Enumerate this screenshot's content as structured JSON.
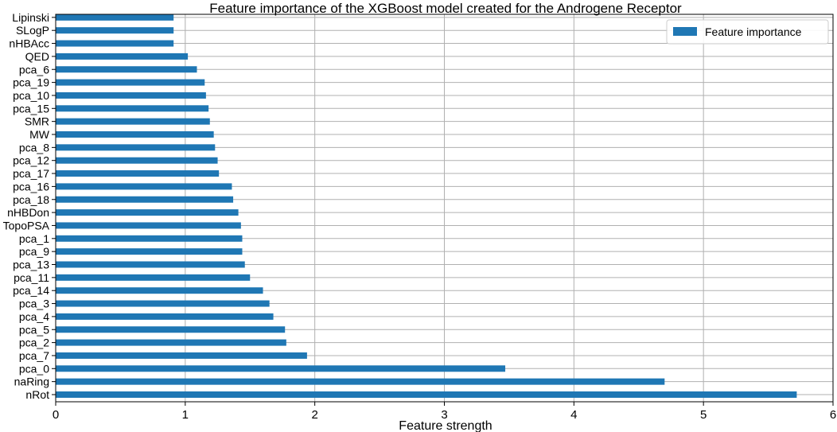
{
  "chart_data": {
    "type": "bar",
    "orientation": "horizontal",
    "title": "Feature importance of the XGBoost model created for the Androgene Receptor",
    "xlabel": "Feature strength",
    "ylabel": "",
    "xlim": [
      0,
      6
    ],
    "xticks": [
      "0",
      "1",
      "2",
      "3",
      "4",
      "5",
      "6"
    ],
    "grid": true,
    "legend_position": "top-right",
    "bar_color": "#1f77b4",
    "series": [
      {
        "name": "Feature importance",
        "categories": [
          "nRot",
          "naRing",
          "pca_0",
          "pca_7",
          "pca_2",
          "pca_5",
          "pca_4",
          "pca_3",
          "pca_14",
          "pca_11",
          "pca_13",
          "pca_9",
          "pca_1",
          "TopoPSA",
          "nHBDon",
          "pca_18",
          "pca_16",
          "pca_17",
          "pca_12",
          "pca_8",
          "MW",
          "SMR",
          "pca_15",
          "pca_10",
          "pca_19",
          "pca_6",
          "QED",
          "nHBAcc",
          "SLogP",
          "Lipinski"
        ],
        "values": [
          5.72,
          4.7,
          3.47,
          1.94,
          1.78,
          1.77,
          1.68,
          1.65,
          1.6,
          1.5,
          1.46,
          1.44,
          1.44,
          1.43,
          1.41,
          1.37,
          1.36,
          1.26,
          1.25,
          1.23,
          1.22,
          1.19,
          1.18,
          1.16,
          1.15,
          1.09,
          1.02,
          0.91,
          0.91,
          0.91
        ]
      }
    ]
  }
}
